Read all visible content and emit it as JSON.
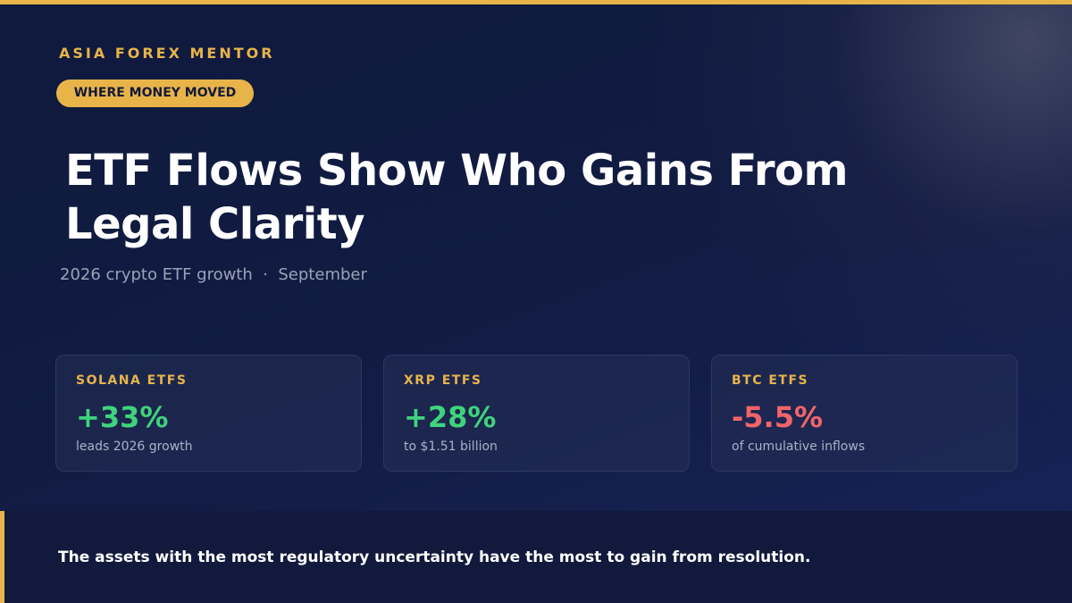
{
  "brand": "ASIA FOREX MENTOR",
  "tag": "WHERE MONEY MOVED",
  "title": "ETF Flows Show Who Gains From Legal Clarity",
  "subtitle": "2026 crypto ETF growth  ·  September",
  "cards": [
    {
      "label": "SOLANA ETFS",
      "value": "+33%",
      "note": "leads 2026 growth",
      "tone": "positive"
    },
    {
      "label": "XRP ETFS",
      "value": "+28%",
      "note": "to $1.51 billion",
      "tone": "positive"
    },
    {
      "label": "BTC ETFS",
      "value": "-5.5%",
      "note": "of cumulative inflows",
      "tone": "negative"
    }
  ],
  "footer": "The assets with the most regulatory uncertainty have the most to gain from resolution."
}
